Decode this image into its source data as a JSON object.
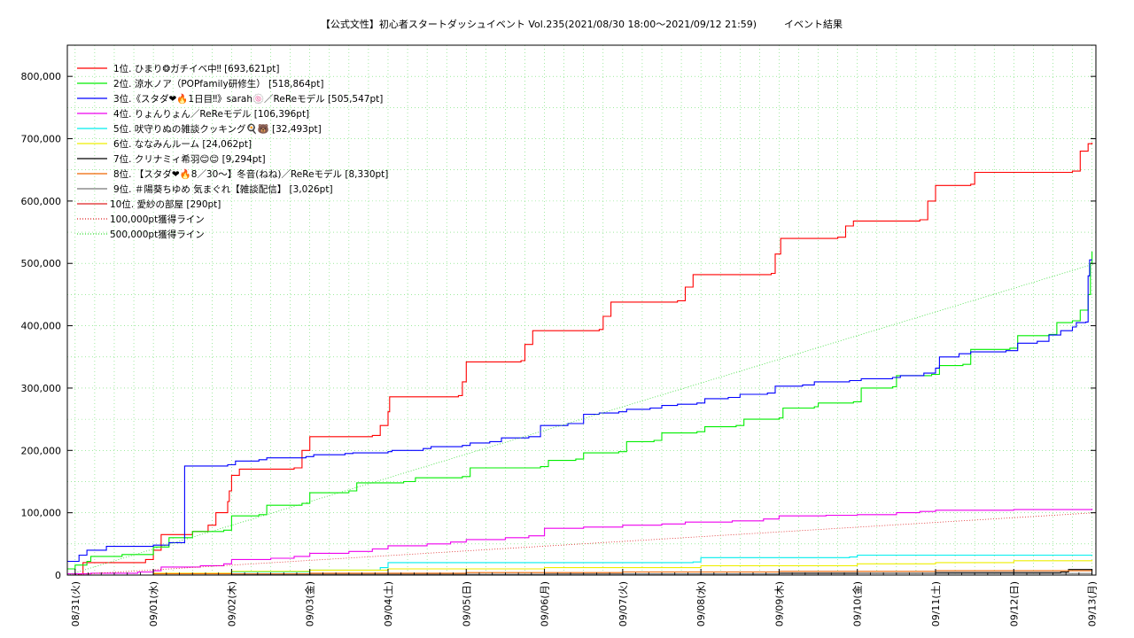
{
  "chart_data": {
    "type": "line",
    "title": "【公式文性】初心者スタートダッシュイベント Vol.235(2021/08/30 18:00〜2021/09/12 21:59)",
    "subtitle": "イベント結果",
    "ylim": [
      0,
      850000
    ],
    "xlim": [
      -0.1,
      13.05
    ],
    "yticks": [
      "0",
      "100,000",
      "200,000",
      "300,000",
      "400,000",
      "500,000",
      "600,000",
      "700,000",
      "800,000"
    ],
    "ytick_values": [
      0,
      100000,
      200000,
      300000,
      400000,
      500000,
      600000,
      700000,
      800000
    ],
    "xticks": [
      "08/31(火)",
      "09/01(水)",
      "09/02(木)",
      "09/03(金)",
      "09/04(土)",
      "09/05(日)",
      "09/06(月)",
      "09/07(火)",
      "09/08(水)",
      "09/09(木)",
      "09/10(金)",
      "09/11(土)",
      "09/12(日)",
      "09/13(月)"
    ],
    "grid": true,
    "legend_position": "top-left",
    "series": [
      {
        "name": "1位. ひまり❂ガチイベ中‼ [693,621pt]",
        "color": "#ff0000",
        "points": [
          [
            -0.1,
            0
          ],
          [
            0.05,
            2000
          ],
          [
            0.1,
            20000
          ],
          [
            0.9,
            25000
          ],
          [
            1.0,
            40000
          ],
          [
            1.1,
            65000
          ],
          [
            1.5,
            70000
          ],
          [
            1.7,
            80000
          ],
          [
            1.8,
            100000
          ],
          [
            1.95,
            118000
          ],
          [
            1.97,
            135000
          ],
          [
            2.0,
            160000
          ],
          [
            2.1,
            170000
          ],
          [
            2.8,
            172000
          ],
          [
            2.9,
            200000
          ],
          [
            3.0,
            222000
          ],
          [
            3.8,
            224000
          ],
          [
            3.9,
            240000
          ],
          [
            4.0,
            262000
          ],
          [
            4.02,
            286000
          ],
          [
            4.9,
            288000
          ],
          [
            4.95,
            310000
          ],
          [
            5.0,
            342000
          ],
          [
            5.7,
            344000
          ],
          [
            5.75,
            370000
          ],
          [
            5.85,
            392000
          ],
          [
            6.7,
            394000
          ],
          [
            6.75,
            415000
          ],
          [
            6.85,
            438000
          ],
          [
            7.7,
            440000
          ],
          [
            7.8,
            462000
          ],
          [
            7.9,
            482000
          ],
          [
            8.9,
            484000
          ],
          [
            8.95,
            515000
          ],
          [
            9.02,
            540000
          ],
          [
            9.75,
            542000
          ],
          [
            9.85,
            560000
          ],
          [
            9.95,
            568000
          ],
          [
            10.8,
            570000
          ],
          [
            10.9,
            600000
          ],
          [
            11.0,
            625000
          ],
          [
            11.45,
            627000
          ],
          [
            11.5,
            646000
          ],
          [
            12.75,
            648000
          ],
          [
            12.85,
            680000
          ],
          [
            12.95,
            692000
          ],
          [
            13.0,
            693621
          ]
        ]
      },
      {
        "name": "2位. 涼水ノア（POPfamily研修生） [518,864pt]",
        "color": "#00ee00",
        "points": [
          [
            -0.1,
            10000
          ],
          [
            0.0,
            16000
          ],
          [
            0.15,
            22000
          ],
          [
            0.2,
            30000
          ],
          [
            0.6,
            33000
          ],
          [
            1.0,
            45000
          ],
          [
            1.2,
            60000
          ],
          [
            1.5,
            70000
          ],
          [
            1.9,
            72000
          ],
          [
            2.0,
            95000
          ],
          [
            2.35,
            97000
          ],
          [
            2.45,
            112000
          ],
          [
            2.9,
            115000
          ],
          [
            3.0,
            132000
          ],
          [
            3.5,
            135000
          ],
          [
            3.6,
            148000
          ],
          [
            4.2,
            150000
          ],
          [
            4.35,
            156000
          ],
          [
            4.95,
            158000
          ],
          [
            5.05,
            172000
          ],
          [
            5.95,
            174000
          ],
          [
            6.05,
            184000
          ],
          [
            6.4,
            186000
          ],
          [
            6.5,
            196000
          ],
          [
            6.95,
            198000
          ],
          [
            7.05,
            214000
          ],
          [
            7.4,
            216000
          ],
          [
            7.5,
            228000
          ],
          [
            7.95,
            230000
          ],
          [
            8.05,
            238000
          ],
          [
            8.45,
            240000
          ],
          [
            8.55,
            250000
          ],
          [
            9.0,
            252000
          ],
          [
            9.05,
            268000
          ],
          [
            9.45,
            270000
          ],
          [
            9.5,
            276000
          ],
          [
            9.95,
            278000
          ],
          [
            10.05,
            300000
          ],
          [
            10.45,
            302000
          ],
          [
            10.5,
            320000
          ],
          [
            10.95,
            322000
          ],
          [
            11.05,
            336000
          ],
          [
            11.35,
            338000
          ],
          [
            11.45,
            362000
          ],
          [
            11.95,
            364000
          ],
          [
            12.05,
            384000
          ],
          [
            12.45,
            386000
          ],
          [
            12.55,
            405000
          ],
          [
            12.75,
            408000
          ],
          [
            12.85,
            425000
          ],
          [
            12.95,
            450000
          ],
          [
            12.98,
            500000
          ],
          [
            13.0,
            518864
          ]
        ]
      },
      {
        "name": "3位.《スタダ❤🔥1日目‼》sarah🍥／ReReモデル [505,547pt]",
        "color": "#0000ff",
        "points": [
          [
            -0.1,
            22000
          ],
          [
            0.05,
            32000
          ],
          [
            0.15,
            40000
          ],
          [
            0.4,
            46000
          ],
          [
            1.0,
            48000
          ],
          [
            1.2,
            52000
          ],
          [
            1.4,
            175000
          ],
          [
            1.95,
            177000
          ],
          [
            2.05,
            183000
          ],
          [
            2.35,
            185000
          ],
          [
            2.45,
            188000
          ],
          [
            2.95,
            190000
          ],
          [
            3.05,
            193000
          ],
          [
            3.45,
            195000
          ],
          [
            3.55,
            196000
          ],
          [
            4.0,
            198000
          ],
          [
            4.05,
            200000
          ],
          [
            4.45,
            203000
          ],
          [
            4.55,
            206000
          ],
          [
            4.95,
            208000
          ],
          [
            5.05,
            212000
          ],
          [
            5.3,
            214000
          ],
          [
            5.45,
            220000
          ],
          [
            5.8,
            222000
          ],
          [
            5.95,
            240000
          ],
          [
            6.3,
            243000
          ],
          [
            6.5,
            258000
          ],
          [
            6.7,
            260000
          ],
          [
            6.95,
            262000
          ],
          [
            7.05,
            266000
          ],
          [
            7.35,
            268000
          ],
          [
            7.5,
            272000
          ],
          [
            7.7,
            274000
          ],
          [
            7.95,
            276000
          ],
          [
            8.05,
            283000
          ],
          [
            8.35,
            285000
          ],
          [
            8.5,
            290000
          ],
          [
            8.85,
            292000
          ],
          [
            8.95,
            303000
          ],
          [
            9.3,
            305000
          ],
          [
            9.45,
            310000
          ],
          [
            9.9,
            312000
          ],
          [
            10.05,
            315000
          ],
          [
            10.45,
            317000
          ],
          [
            10.55,
            320000
          ],
          [
            10.85,
            324000
          ],
          [
            11.0,
            332000
          ],
          [
            11.05,
            350000
          ],
          [
            11.3,
            355000
          ],
          [
            11.45,
            358000
          ],
          [
            11.9,
            360000
          ],
          [
            12.05,
            372000
          ],
          [
            12.3,
            375000
          ],
          [
            12.45,
            385000
          ],
          [
            12.6,
            392000
          ],
          [
            12.75,
            398000
          ],
          [
            12.8,
            405000
          ],
          [
            12.92,
            406000
          ],
          [
            12.95,
            480000
          ],
          [
            12.97,
            505547
          ],
          [
            13.0,
            505547
          ]
        ]
      },
      {
        "name": "4位. りょんりょん／ReReモデル [106,396pt]",
        "color": "#ee00ee",
        "points": [
          [
            -0.1,
            2000
          ],
          [
            0.2,
            3000
          ],
          [
            0.8,
            5000
          ],
          [
            1.0,
            7000
          ],
          [
            1.1,
            13000
          ],
          [
            1.6,
            15000
          ],
          [
            1.9,
            18000
          ],
          [
            2.0,
            25000
          ],
          [
            2.5,
            27000
          ],
          [
            2.8,
            30000
          ],
          [
            3.0,
            35000
          ],
          [
            3.5,
            38000
          ],
          [
            3.8,
            42000
          ],
          [
            4.0,
            47000
          ],
          [
            4.5,
            50000
          ],
          [
            4.8,
            53000
          ],
          [
            5.0,
            57000
          ],
          [
            5.5,
            60000
          ],
          [
            5.8,
            63000
          ],
          [
            6.0,
            75000
          ],
          [
            6.5,
            77000
          ],
          [
            7.0,
            80000
          ],
          [
            7.5,
            82000
          ],
          [
            7.8,
            85000
          ],
          [
            8.4,
            87000
          ],
          [
            8.8,
            90000
          ],
          [
            9.0,
            95000
          ],
          [
            9.6,
            96000
          ],
          [
            10.0,
            97000
          ],
          [
            10.5,
            100000
          ],
          [
            10.8,
            102000
          ],
          [
            11.0,
            104000
          ],
          [
            12.0,
            105000
          ],
          [
            13.0,
            106396
          ]
        ]
      },
      {
        "name": "5位. 吠守りぬの雑談クッキング🍳🐻 [32,493pt]",
        "color": "#00eeee",
        "points": [
          [
            -0.1,
            0
          ],
          [
            1.0,
            2000
          ],
          [
            2.0,
            5000
          ],
          [
            3.0,
            8000
          ],
          [
            3.9,
            12000
          ],
          [
            4.0,
            20000
          ],
          [
            7.9,
            21000
          ],
          [
            8.0,
            28000
          ],
          [
            9.9,
            29000
          ],
          [
            10.0,
            32000
          ],
          [
            13.0,
            32493
          ]
        ]
      },
      {
        "name": "6位. ななみんルーム [24,062pt]",
        "color": "#eeee00",
        "points": [
          [
            -0.1,
            0
          ],
          [
            1.0,
            3000
          ],
          [
            2.0,
            6000
          ],
          [
            3.0,
            8000
          ],
          [
            4.0,
            10000
          ],
          [
            6.0,
            12000
          ],
          [
            8.0,
            15000
          ],
          [
            10.0,
            18000
          ],
          [
            11.0,
            20000
          ],
          [
            12.0,
            23000
          ],
          [
            13.0,
            24062
          ]
        ]
      },
      {
        "name": "7位. クリナミィ希羽😊😊 [9,294pt]",
        "color": "#000000",
        "points": [
          [
            -0.1,
            0
          ],
          [
            3.0,
            1000
          ],
          [
            6.0,
            2000
          ],
          [
            9.0,
            3000
          ],
          [
            11.0,
            4000
          ],
          [
            12.6,
            5000
          ],
          [
            12.7,
            9000
          ],
          [
            13.0,
            9294
          ]
        ]
      },
      {
        "name": "8位. 【スタダ❤🔥8／30〜】冬音(ねね)／ReReモデル [8,330pt]",
        "color": "#ee6600",
        "points": [
          [
            -0.1,
            0
          ],
          [
            1.0,
            2000
          ],
          [
            3.0,
            3000
          ],
          [
            5.0,
            4000
          ],
          [
            7.0,
            5000
          ],
          [
            9.0,
            6000
          ],
          [
            11.0,
            7000
          ],
          [
            13.0,
            8330
          ]
        ]
      },
      {
        "name": "9位. ＃陽葵ちゆめ 気まぐれ【雑談配信】 [3,026pt]",
        "color": "#777777",
        "points": [
          [
            -0.1,
            0
          ],
          [
            2.0,
            1000
          ],
          [
            6.0,
            2000
          ],
          [
            10.0,
            2500
          ],
          [
            13.0,
            3026
          ]
        ]
      },
      {
        "name": "10位. 愛紗の部屋 [290pt]",
        "color": "#dd2222",
        "points": [
          [
            -0.1,
            0
          ],
          [
            13.0,
            290
          ]
        ]
      },
      {
        "name": "100,000pt獲得ライン",
        "color": "#dd2222",
        "dotted": true,
        "points": [
          [
            -0.1,
            0
          ],
          [
            13.05,
            100000
          ]
        ]
      },
      {
        "name": "500,000pt獲得ライン",
        "color": "#33dd33",
        "dotted": true,
        "points": [
          [
            -0.1,
            0
          ],
          [
            13.05,
            500000
          ]
        ]
      }
    ]
  }
}
